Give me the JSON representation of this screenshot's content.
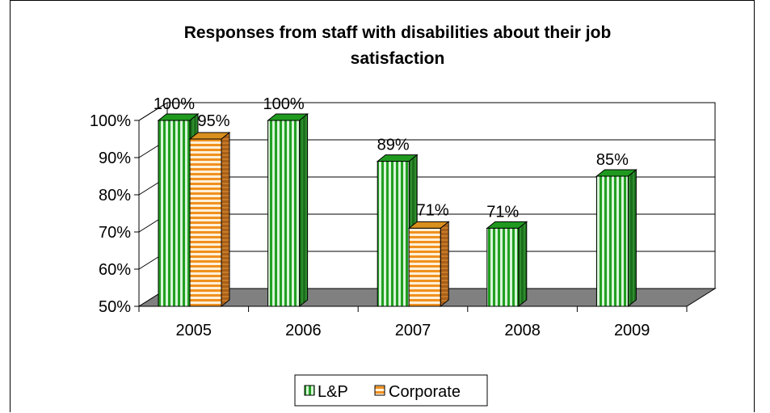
{
  "chart_data": {
    "type": "bar",
    "title_lines": [
      "Responses from staff with disabilities about their job",
      "satisfaction"
    ],
    "categories": [
      "2005",
      "2006",
      "2007",
      "2008",
      "2009"
    ],
    "series": [
      {
        "name": "L&P",
        "values": [
          100,
          100,
          89,
          71,
          85
        ],
        "labels": [
          "100%",
          "100%",
          "89%",
          "71%",
          "85%"
        ],
        "color": "#22a022"
      },
      {
        "name": "Corporate",
        "values": [
          95,
          null,
          71,
          null,
          null
        ],
        "labels": [
          "95%",
          null,
          "71%",
          null,
          null
        ],
        "color": "#f0901e"
      }
    ],
    "y_ticks": [
      "50%",
      "60%",
      "70%",
      "80%",
      "90%",
      "100%"
    ],
    "ylim": [
      50,
      100
    ],
    "grid": true,
    "legend_position": "bottom",
    "floor_color": "#808080"
  }
}
